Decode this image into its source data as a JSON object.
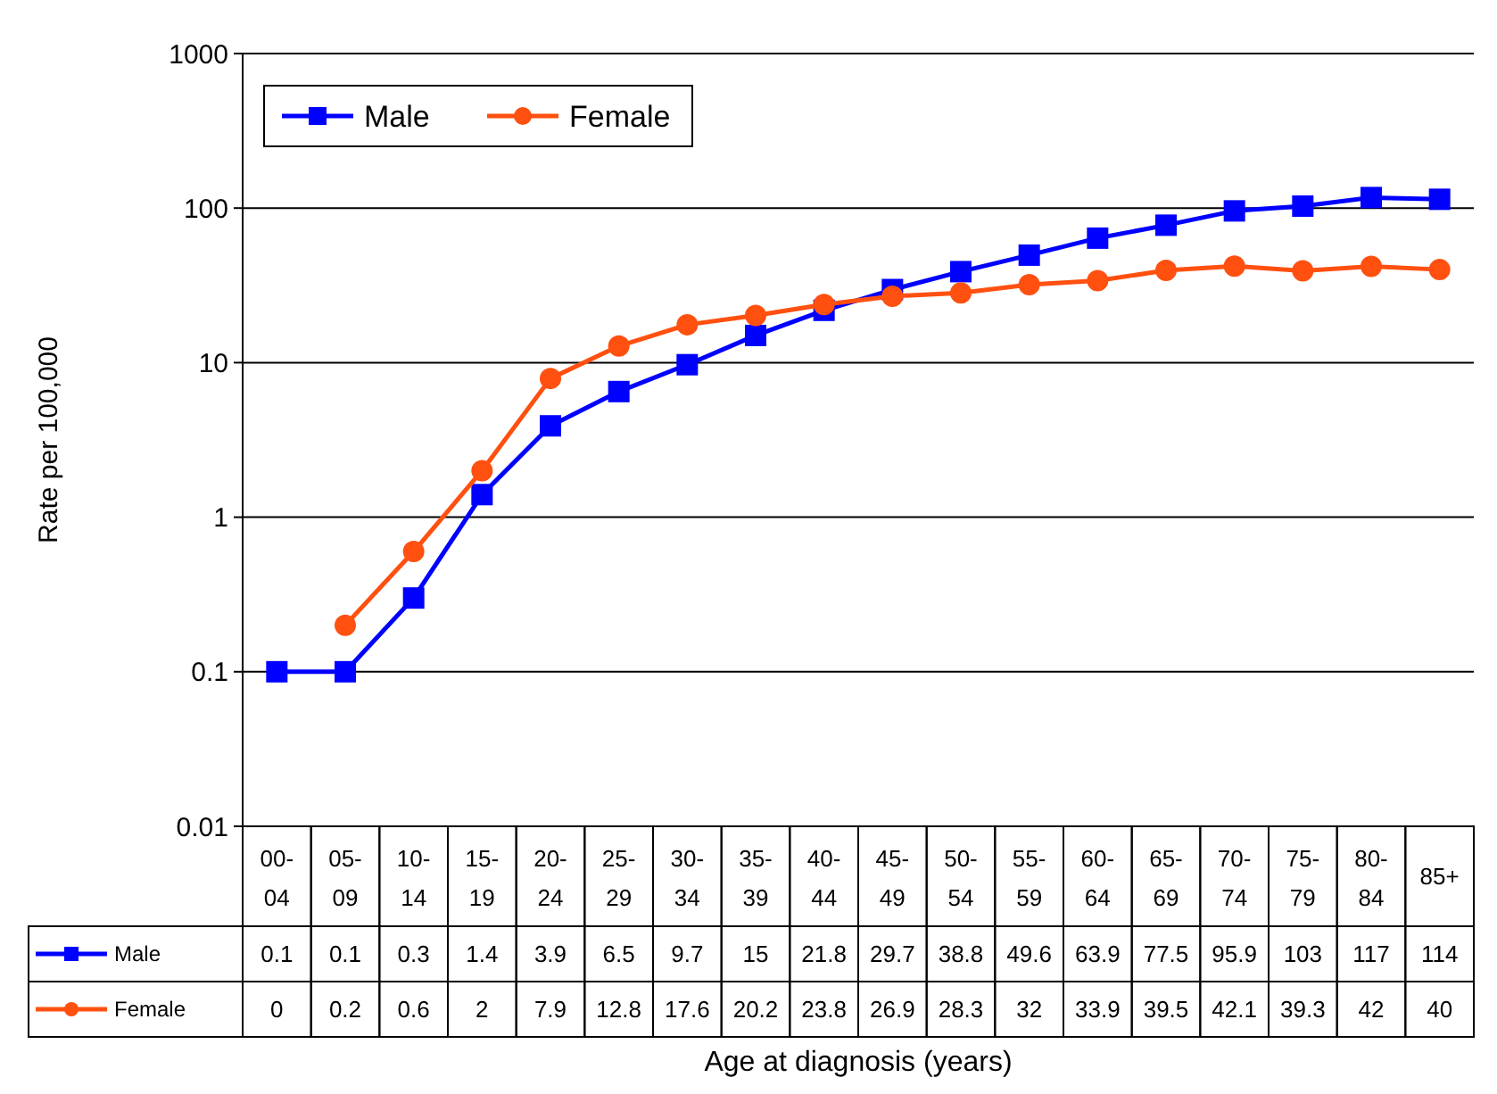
{
  "chart_data": {
    "type": "line",
    "xlabel": "Age at diagnosis (years)",
    "ylabel": "Rate per 100,000",
    "categories": [
      "00-04",
      "05-09",
      "10-14",
      "15-19",
      "20-24",
      "25-29",
      "30-34",
      "35-39",
      "40-44",
      "45-49",
      "50-54",
      "55-59",
      "60-64",
      "65-69",
      "70-74",
      "75-79",
      "80-84",
      "85+"
    ],
    "series": [
      {
        "name": "Male",
        "color": "#0000ff",
        "marker": "square",
        "values": [
          0.1,
          0.1,
          0.3,
          1.4,
          3.9,
          6.5,
          9.7,
          15,
          21.8,
          29.7,
          38.8,
          49.6,
          63.9,
          77.5,
          95.9,
          103,
          117,
          114
        ],
        "value_labels": [
          "0.1",
          "0.1",
          "0.3",
          "1.4",
          "3.9",
          "6.5",
          "9.7",
          "15",
          "21.8",
          "29.7",
          "38.8",
          "49.6",
          "63.9",
          "77.5",
          "95.9",
          "103",
          "117",
          "114"
        ]
      },
      {
        "name": "Female",
        "color": "#ff5010",
        "marker": "circle",
        "values": [
          null,
          0.2,
          0.6,
          2,
          7.9,
          12.8,
          17.6,
          20.2,
          23.8,
          26.9,
          28.3,
          32,
          33.9,
          39.5,
          42.1,
          39.3,
          42,
          40
        ],
        "value_labels": [
          "0",
          "0.2",
          "0.6",
          "2",
          "7.9",
          "12.8",
          "17.6",
          "20.2",
          "23.8",
          "26.9",
          "28.3",
          "32",
          "33.9",
          "39.5",
          "42.1",
          "39.3",
          "42",
          "40"
        ]
      }
    ],
    "log": true,
    "ylim": [
      0.01,
      1000
    ],
    "yticks": [
      0.01,
      0.1,
      1,
      10,
      100,
      1000
    ],
    "grid": "y",
    "legend": "top left",
    "line_style": "solid"
  }
}
